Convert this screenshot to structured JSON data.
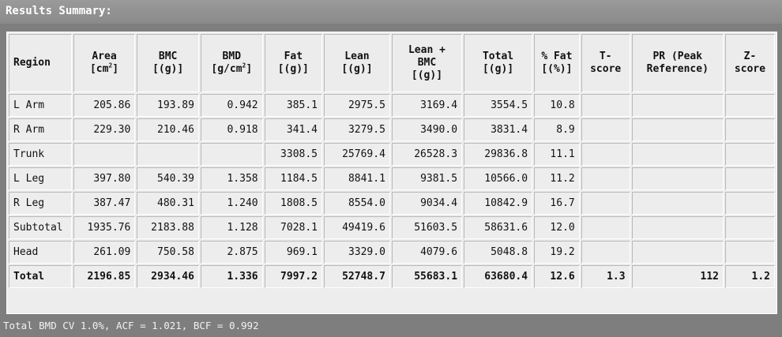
{
  "window": {
    "title": "Results Summary:"
  },
  "table": {
    "headers": {
      "region": "Region",
      "area": "Area",
      "area_unit_base": "[cm",
      "area_unit_exp": "2",
      "area_unit_end": "]",
      "bmc": "BMC",
      "bmc_unit": "[(g)]",
      "bmd": "BMD",
      "bmd_unit_base": "[g/cm",
      "bmd_unit_exp": "2",
      "bmd_unit_end": "]",
      "fat": "Fat",
      "fat_unit": "[(g)]",
      "lean": "Lean",
      "lean_unit": "[(g)]",
      "lean_bmc_1": "Lean +",
      "lean_bmc_2": "BMC",
      "lean_bmc_unit": "[(g)]",
      "total": "Total",
      "total_unit": "[(g)]",
      "pct_fat": "% Fat",
      "pct_fat_unit": "[(%)]",
      "t_score_1": "T-",
      "t_score_2": "score",
      "pr_1": "PR (Peak",
      "pr_2": "Reference)",
      "z_score_1": "Z-",
      "z_score_2": "score"
    },
    "rows": [
      [
        "L Arm",
        "205.86",
        "193.89",
        "0.942",
        "385.1",
        "2975.5",
        "3169.4",
        "3554.5",
        "10.8",
        "",
        "",
        ""
      ],
      [
        "R Arm",
        "229.30",
        "210.46",
        "0.918",
        "341.4",
        "3279.5",
        "3490.0",
        "3831.4",
        "8.9",
        "",
        "",
        ""
      ],
      [
        "Trunk",
        "",
        "",
        "",
        "3308.5",
        "25769.4",
        "26528.3",
        "29836.8",
        "11.1",
        "",
        "",
        ""
      ],
      [
        "L Leg",
        "397.80",
        "540.39",
        "1.358",
        "1184.5",
        "8841.1",
        "9381.5",
        "10566.0",
        "11.2",
        "",
        "",
        ""
      ],
      [
        "R Leg",
        "387.47",
        "480.31",
        "1.240",
        "1808.5",
        "8554.0",
        "9034.4",
        "10842.9",
        "16.7",
        "",
        "",
        ""
      ],
      [
        "Subtotal",
        "1935.76",
        "2183.88",
        "1.128",
        "7028.1",
        "49419.6",
        "51603.5",
        "58631.6",
        "12.0",
        "",
        "",
        ""
      ],
      [
        "Head",
        "261.09",
        "750.58",
        "2.875",
        "969.1",
        "3329.0",
        "4079.6",
        "5048.8",
        "19.2",
        "",
        "",
        ""
      ],
      [
        "Total",
        "2196.85",
        "2934.46",
        "1.336",
        "7997.2",
        "52748.7",
        "55683.1",
        "63680.4",
        "12.6",
        "1.3",
        "112",
        "1.2"
      ]
    ]
  },
  "footer": {
    "text": "Total BMD CV 1.0%, ACF = 1.021, BCF = 0.992"
  }
}
